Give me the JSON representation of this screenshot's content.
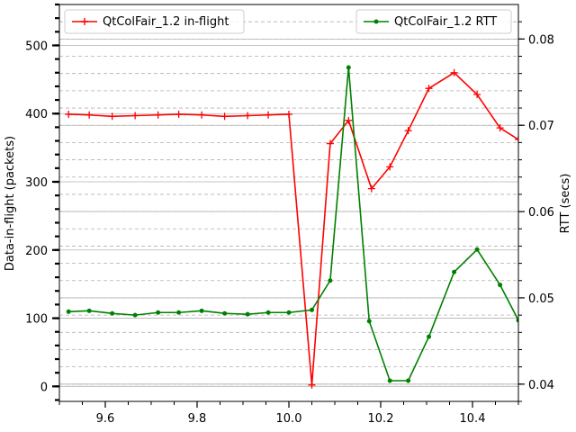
{
  "chart_data": {
    "type": "line",
    "xlim": [
      9.5,
      10.5
    ],
    "x_ticks": [
      9.6,
      9.8,
      10.0,
      10.2,
      10.4
    ],
    "left_axis": {
      "label": "Data-in-flight (packets)",
      "ylim": [
        -22,
        560
      ],
      "ticks": [
        0,
        100,
        200,
        300,
        400,
        500
      ]
    },
    "right_axis": {
      "label": "RTT (secs)",
      "ylim": [
        0.038,
        0.084
      ],
      "ticks": [
        0.04,
        0.05,
        0.06,
        0.07,
        0.08
      ]
    },
    "grid": true,
    "series": [
      {
        "name": "QtColFair_1.2 in-flight",
        "axis": "left",
        "color": "#ff0000",
        "marker": "plus",
        "x": [
          9.52,
          9.565,
          9.615,
          9.665,
          9.715,
          9.76,
          9.81,
          9.86,
          9.91,
          9.955,
          10.0,
          10.05,
          10.09,
          10.13,
          10.18,
          10.22,
          10.26,
          10.305,
          10.36,
          10.41,
          10.46,
          10.5
        ],
        "values": [
          399,
          398,
          396,
          397,
          398,
          399,
          398,
          396,
          397,
          398,
          399,
          2,
          356,
          390,
          290,
          322,
          375,
          437,
          460,
          428,
          379,
          362
        ]
      },
      {
        "name": "QtColFair_1.2 RTT",
        "axis": "right",
        "color": "#008000",
        "marker": "dot",
        "x": [
          9.52,
          9.565,
          9.615,
          9.665,
          9.715,
          9.76,
          9.81,
          9.86,
          9.91,
          9.955,
          10.0,
          10.05,
          10.09,
          10.13,
          10.175,
          10.22,
          10.26,
          10.305,
          10.36,
          10.41,
          10.46,
          10.5
        ],
        "values": [
          0.0484,
          0.0485,
          0.0482,
          0.048,
          0.0483,
          0.0483,
          0.0485,
          0.0482,
          0.0481,
          0.0483,
          0.0483,
          0.0486,
          0.052,
          0.0767,
          0.0473,
          0.0404,
          0.0404,
          0.0455,
          0.053,
          0.0556,
          0.0515,
          0.0474
        ]
      }
    ]
  }
}
